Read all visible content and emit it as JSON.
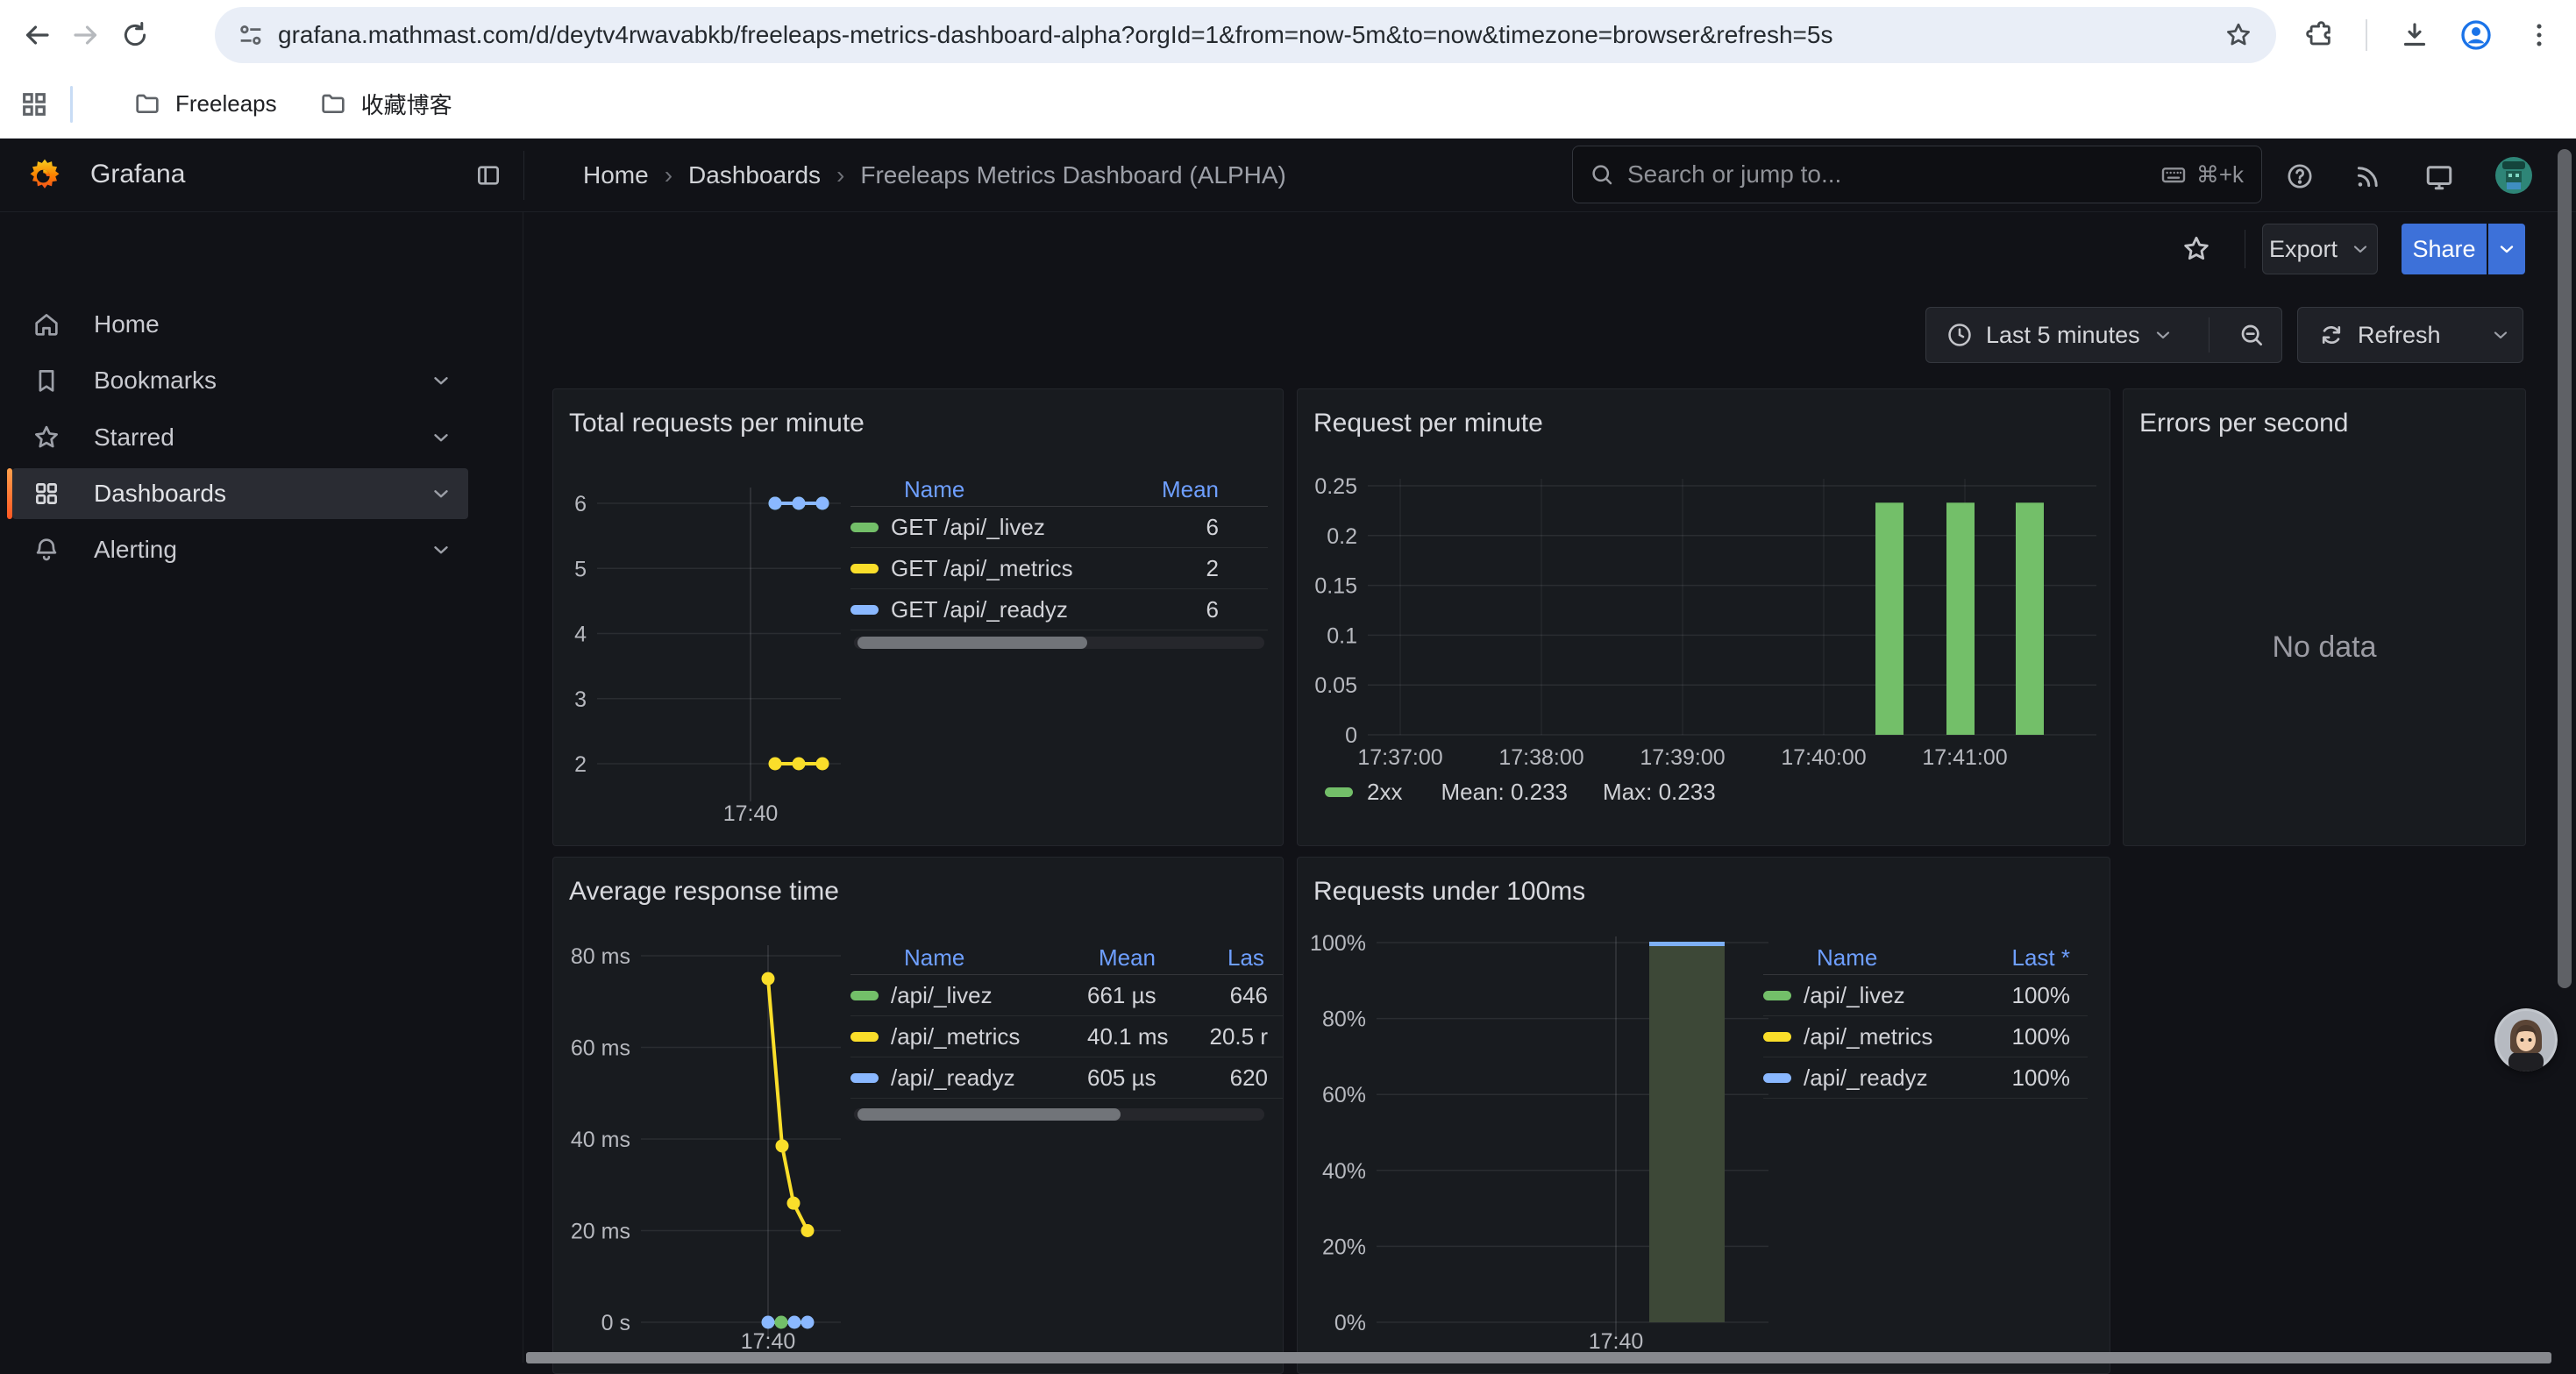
{
  "browser": {
    "url": "grafana.mathmast.com/d/deytv4rwavabkb/freeleaps-metrics-dashboard-alpha?orgId=1&from=now-5m&to=now&timezone=browser&refresh=5s",
    "bookmarks_bar": {
      "folders": [
        "Freeleaps",
        "收藏博客"
      ]
    }
  },
  "app_header": {
    "brand": "Grafana",
    "breadcrumbs": [
      "Home",
      "Dashboards",
      "Freeleaps Metrics Dashboard (ALPHA)"
    ],
    "search": {
      "placeholder": "Search or jump to...",
      "shortcut": "⌘+k"
    }
  },
  "sidebar": {
    "items": [
      {
        "label": "Home",
        "icon": "home-icon",
        "expandable": false,
        "selected": false
      },
      {
        "label": "Bookmarks",
        "icon": "bookmark-icon",
        "expandable": true,
        "selected": false
      },
      {
        "label": "Starred",
        "icon": "star-icon",
        "expandable": true,
        "selected": false
      },
      {
        "label": "Dashboards",
        "icon": "grid-icon",
        "expandable": true,
        "selected": true
      },
      {
        "label": "Alerting",
        "icon": "bell-icon",
        "expandable": true,
        "selected": false
      }
    ]
  },
  "dashboard_toolbar": {
    "export_label": "Export",
    "share_label": "Share"
  },
  "time_controls": {
    "range_label": "Last 5 minutes",
    "refresh_label": "Refresh"
  },
  "colors": {
    "green": "#73bf69",
    "yellow": "#fade2a",
    "blue": "#8ab8ff",
    "legend_header_blue": "#6e9fff",
    "share_blue": "#3d71d9",
    "grafana_orange": "#ff8833",
    "bar_olive": "#3d4837",
    "bar_cap_blue": "#7eb0f5"
  },
  "panels": {
    "total_requests": {
      "title": "Total requests per minute",
      "chart": {
        "type": "line",
        "y_ticks": [
          "6",
          "5",
          "4",
          "3",
          "2"
        ],
        "x_tick": "17:40",
        "series": [
          {
            "name": "GET /api/_livez",
            "color": "#73bf69",
            "value": 6
          },
          {
            "name": "GET /api/_metrics",
            "color": "#fade2a",
            "value": 2
          },
          {
            "name": "GET /api/_readyz",
            "color": "#8ab8ff",
            "value": 6
          }
        ]
      },
      "legend": {
        "columns": [
          "Name",
          "Mean"
        ],
        "rows": [
          {
            "color": "#73bf69",
            "name": "GET /api/_livez",
            "values": [
              "6"
            ]
          },
          {
            "color": "#fade2a",
            "name": "GET /api/_metrics",
            "values": [
              "2"
            ]
          },
          {
            "color": "#8ab8ff",
            "name": "GET /api/_readyz",
            "values": [
              "6"
            ]
          }
        ]
      }
    },
    "request_per_minute": {
      "title": "Request per minute",
      "chart": {
        "type": "bar",
        "y_ticks": [
          "0.25",
          "0.2",
          "0.15",
          "0.1",
          "0.05",
          "0"
        ],
        "y_max": 0.25,
        "x_ticks": [
          "17:37:00",
          "17:38:00",
          "17:39:00",
          "17:40:00",
          "17:41:00"
        ],
        "bar_values": [
          0.233,
          0.233,
          0.233
        ],
        "bar_color": "#73bf69"
      },
      "legend": {
        "series": "2xx",
        "color": "#73bf69",
        "stats": [
          "Mean: 0.233",
          "Max: 0.233"
        ]
      }
    },
    "errors_per_second": {
      "title": "Errors per second",
      "no_data": "No data"
    },
    "avg_response": {
      "title": "Average response time",
      "chart": {
        "type": "line",
        "y_ticks": [
          "80 ms",
          "60 ms",
          "40 ms",
          "20 ms",
          "0 s"
        ],
        "y_max_ms": 80,
        "x_tick": "17:40",
        "metrics_points_ms": [
          75,
          38.5,
          26,
          20
        ],
        "metrics_color": "#fade2a",
        "baseline_dot_colors": [
          "#8ab8ff",
          "#73bf69",
          "#8ab8ff",
          "#8ab8ff"
        ],
        "baseline_color": "#73bf69"
      },
      "legend": {
        "columns": [
          "Name",
          "Mean",
          "Las"
        ],
        "rows": [
          {
            "color": "#73bf69",
            "name": "/api/_livez",
            "values": [
              "661 µs",
              "646"
            ]
          },
          {
            "color": "#fade2a",
            "name": "/api/_metrics",
            "values": [
              "40.1 ms",
              "20.5 r"
            ]
          },
          {
            "color": "#8ab8ff",
            "name": "/api/_readyz",
            "values": [
              "605 µs",
              "620"
            ]
          }
        ]
      }
    },
    "under_100ms": {
      "title": "Requests under 100ms",
      "chart": {
        "type": "bar",
        "y_ticks": [
          "100%",
          "80%",
          "60%",
          "40%",
          "20%",
          "0%"
        ],
        "x_tick": "17:40",
        "bar_value": "100%"
      },
      "legend": {
        "columns": [
          "Name",
          "Last *"
        ],
        "rows": [
          {
            "color": "#73bf69",
            "name": "/api/_livez",
            "values": [
              "100%"
            ]
          },
          {
            "color": "#fade2a",
            "name": "/api/_metrics",
            "values": [
              "100%"
            ]
          },
          {
            "color": "#8ab8ff",
            "name": "/api/_readyz",
            "values": [
              "100%"
            ]
          }
        ]
      }
    }
  }
}
